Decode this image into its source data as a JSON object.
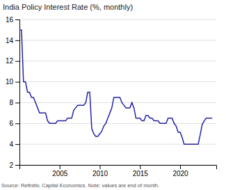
{
  "chart_data": {
    "type": "line",
    "title": "India Policy Interest Rate (%, monthly)",
    "annotations": [
      "Source: Refinitiv, Capital Economics. Note: values are end of month."
    ],
    "color": "#2222aa",
    "grid": true,
    "xlim": [
      2000.0,
      2024.5
    ],
    "xticks": [
      2005,
      2010,
      2015,
      2020
    ],
    "ylim": [
      2,
      16
    ],
    "yticks": [
      2,
      4,
      6,
      8,
      10,
      12,
      14,
      16
    ],
    "x": [
      2000.0,
      2000.25,
      2000.5,
      2000.75,
      2001.0,
      2001.25,
      2001.5,
      2001.75,
      2002.0,
      2002.25,
      2002.5,
      2002.75,
      2003.0,
      2003.25,
      2003.5,
      2003.75,
      2004.0,
      2004.25,
      2004.5,
      2004.75,
      2005.0,
      2005.25,
      2005.5,
      2005.75,
      2006.0,
      2006.25,
      2006.5,
      2006.75,
      2007.0,
      2007.25,
      2007.5,
      2007.75,
      2008.0,
      2008.25,
      2008.5,
      2008.75,
      2009.0,
      2009.25,
      2009.5,
      2009.75,
      2010.0,
      2010.25,
      2010.5,
      2010.75,
      2011.0,
      2011.25,
      2011.5,
      2011.75,
      2012.0,
      2012.25,
      2012.5,
      2012.75,
      2013.0,
      2013.25,
      2013.5,
      2013.75,
      2014.0,
      2014.25,
      2014.5,
      2014.75,
      2015.0,
      2015.25,
      2015.5,
      2015.75,
      2016.0,
      2016.25,
      2016.5,
      2016.75,
      2017.0,
      2017.25,
      2017.5,
      2017.75,
      2018.0,
      2018.25,
      2018.5,
      2018.75,
      2019.0,
      2019.25,
      2019.5,
      2019.75,
      2020.0,
      2020.25,
      2020.5,
      2020.75,
      2021.0,
      2021.25,
      2021.5,
      2021.75,
      2022.0,
      2022.25,
      2022.5,
      2022.75,
      2023.0,
      2023.25,
      2023.5,
      2023.75,
      2024.0
    ],
    "values": [
      15.0,
      15.0,
      10.0,
      10.0,
      9.0,
      9.0,
      8.5,
      8.5,
      8.0,
      7.5,
      7.0,
      7.0,
      7.0,
      7.0,
      6.25,
      6.0,
      6.0,
      6.0,
      6.0,
      6.25,
      6.25,
      6.25,
      6.25,
      6.25,
      6.5,
      6.5,
      6.5,
      7.25,
      7.5,
      7.75,
      7.75,
      7.75,
      7.75,
      8.0,
      9.0,
      9.0,
      5.5,
      5.0,
      4.75,
      4.75,
      5.0,
      5.25,
      5.75,
      6.0,
      6.5,
      7.0,
      7.5,
      8.5,
      8.5,
      8.5,
      8.5,
      8.0,
      7.75,
      7.5,
      7.5,
      7.5,
      8.0,
      7.5,
      6.5,
      6.5,
      6.5,
      6.25,
      6.25,
      6.75,
      6.75,
      6.5,
      6.5,
      6.25,
      6.25,
      6.25,
      6.0,
      6.0,
      6.0,
      6.0,
      6.5,
      6.5,
      6.5,
      6.0,
      5.75,
      5.15,
      5.15,
      4.65,
      4.0,
      4.0,
      4.0,
      4.0,
      4.0,
      4.0,
      4.0,
      4.0,
      4.9,
      5.9,
      6.25,
      6.5,
      6.5,
      6.5,
      6.5
    ]
  }
}
